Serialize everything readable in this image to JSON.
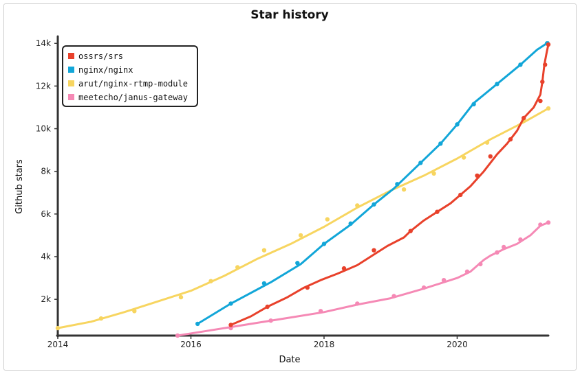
{
  "chart_data": {
    "type": "line",
    "title": "Star history",
    "xlabel": "Date",
    "ylabel": "Github stars",
    "x_unit": "year",
    "xlim": [
      2014.0,
      2021.37
    ],
    "ylim": [
      300,
      14200
    ],
    "x_ticks": [
      {
        "value": 2014,
        "label": "2014"
      },
      {
        "value": 2016,
        "label": "2016"
      },
      {
        "value": 2018,
        "label": "2018"
      },
      {
        "value": 2020,
        "label": "2020"
      }
    ],
    "y_ticks": [
      {
        "value": 2000,
        "label": "2k"
      },
      {
        "value": 4000,
        "label": "4k"
      },
      {
        "value": 6000,
        "label": "6k"
      },
      {
        "value": 8000,
        "label": "8k"
      },
      {
        "value": 10000,
        "label": "10k"
      },
      {
        "value": 12000,
        "label": "12k"
      },
      {
        "value": 14000,
        "label": "14k"
      }
    ],
    "legend_position": "top-left",
    "series": [
      {
        "name": "ossrs/srs",
        "color": "#e8412b",
        "points": [
          [
            2016.6,
            800
          ],
          [
            2016.9,
            1200
          ],
          [
            2017.15,
            1650
          ],
          [
            2017.45,
            2100
          ],
          [
            2017.7,
            2550
          ],
          [
            2017.95,
            2900
          ],
          [
            2018.2,
            3200
          ],
          [
            2018.5,
            3600
          ],
          [
            2018.75,
            4100
          ],
          [
            2018.95,
            4500
          ],
          [
            2019.2,
            4900
          ],
          [
            2019.3,
            5200
          ],
          [
            2019.5,
            5700
          ],
          [
            2019.7,
            6100
          ],
          [
            2019.9,
            6500
          ],
          [
            2020.05,
            6900
          ],
          [
            2020.2,
            7300
          ],
          [
            2020.4,
            8000
          ],
          [
            2020.6,
            8800
          ],
          [
            2020.75,
            9300
          ],
          [
            2020.9,
            9900
          ],
          [
            2021.0,
            10500
          ],
          [
            2021.15,
            11000
          ],
          [
            2021.25,
            11600
          ],
          [
            2021.28,
            12200
          ],
          [
            2021.31,
            13000
          ],
          [
            2021.34,
            13500
          ],
          [
            2021.37,
            13950
          ]
        ],
        "markers": [
          [
            2016.6,
            800
          ],
          [
            2017.15,
            1650
          ],
          [
            2017.75,
            2550
          ],
          [
            2018.3,
            3450
          ],
          [
            2018.75,
            4300
          ],
          [
            2019.3,
            5200
          ],
          [
            2019.7,
            6100
          ],
          [
            2020.05,
            6900
          ],
          [
            2020.3,
            7800
          ],
          [
            2020.5,
            8700
          ],
          [
            2020.8,
            9500
          ],
          [
            2021.0,
            10500
          ],
          [
            2021.25,
            11300
          ],
          [
            2021.28,
            12200
          ],
          [
            2021.32,
            13000
          ],
          [
            2021.37,
            13950
          ]
        ]
      },
      {
        "name": "nginx/nginx",
        "color": "#12a6d8",
        "points": [
          [
            2016.1,
            850
          ],
          [
            2016.6,
            1800
          ],
          [
            2017.2,
            2800
          ],
          [
            2017.65,
            3650
          ],
          [
            2018.0,
            4600
          ],
          [
            2018.4,
            5500
          ],
          [
            2018.75,
            6450
          ],
          [
            2019.05,
            7200
          ],
          [
            2019.45,
            8400
          ],
          [
            2019.75,
            9300
          ],
          [
            2020.0,
            10200
          ],
          [
            2020.25,
            11200
          ],
          [
            2020.6,
            12100
          ],
          [
            2020.95,
            13000
          ],
          [
            2021.2,
            13700
          ],
          [
            2021.37,
            14050
          ]
        ],
        "markers": [
          [
            2016.1,
            850
          ],
          [
            2016.6,
            1800
          ],
          [
            2017.1,
            2750
          ],
          [
            2017.6,
            3700
          ],
          [
            2018.0,
            4600
          ],
          [
            2018.4,
            5550
          ],
          [
            2018.75,
            6450
          ],
          [
            2019.1,
            7400
          ],
          [
            2019.45,
            8400
          ],
          [
            2019.75,
            9300
          ],
          [
            2020.0,
            10200
          ],
          [
            2020.25,
            11150
          ],
          [
            2020.6,
            12100
          ],
          [
            2020.95,
            13000
          ],
          [
            2021.35,
            14000
          ]
        ]
      },
      {
        "name": "arut/nginx-rtmp-module",
        "color": "#f7d560",
        "points": [
          [
            2014.0,
            650
          ],
          [
            2014.5,
            950
          ],
          [
            2015.0,
            1400
          ],
          [
            2015.5,
            1900
          ],
          [
            2016.0,
            2400
          ],
          [
            2016.5,
            3100
          ],
          [
            2017.0,
            3900
          ],
          [
            2017.5,
            4600
          ],
          [
            2018.0,
            5400
          ],
          [
            2018.5,
            6300
          ],
          [
            2019.0,
            7100
          ],
          [
            2019.5,
            7800
          ],
          [
            2020.0,
            8600
          ],
          [
            2020.5,
            9500
          ],
          [
            2021.0,
            10300
          ],
          [
            2021.37,
            10950
          ]
        ],
        "markers": [
          [
            2014.0,
            650
          ],
          [
            2014.65,
            1100
          ],
          [
            2015.15,
            1450
          ],
          [
            2015.85,
            2100
          ],
          [
            2016.3,
            2850
          ],
          [
            2016.7,
            3500
          ],
          [
            2017.1,
            4300
          ],
          [
            2017.65,
            5000
          ],
          [
            2018.05,
            5750
          ],
          [
            2018.5,
            6400
          ],
          [
            2019.2,
            7150
          ],
          [
            2019.65,
            7900
          ],
          [
            2020.1,
            8650
          ],
          [
            2020.45,
            9350
          ],
          [
            2021.0,
            10400
          ],
          [
            2021.37,
            10950
          ]
        ]
      },
      {
        "name": "meetecho/janus-gateway",
        "color": "#f589b5",
        "points": [
          [
            2015.8,
            300
          ],
          [
            2016.2,
            500
          ],
          [
            2016.6,
            700
          ],
          [
            2017.0,
            900
          ],
          [
            2017.5,
            1150
          ],
          [
            2018.0,
            1400
          ],
          [
            2018.5,
            1750
          ],
          [
            2019.0,
            2050
          ],
          [
            2019.5,
            2500
          ],
          [
            2020.0,
            3000
          ],
          [
            2020.2,
            3300
          ],
          [
            2020.4,
            3850
          ],
          [
            2020.5,
            4050
          ],
          [
            2020.7,
            4350
          ],
          [
            2020.9,
            4600
          ],
          [
            2021.1,
            5000
          ],
          [
            2021.25,
            5450
          ],
          [
            2021.37,
            5600
          ]
        ],
        "markers": [
          [
            2015.8,
            300
          ],
          [
            2016.6,
            650
          ],
          [
            2017.2,
            1000
          ],
          [
            2017.95,
            1450
          ],
          [
            2018.5,
            1800
          ],
          [
            2019.05,
            2150
          ],
          [
            2019.5,
            2550
          ],
          [
            2019.8,
            2900
          ],
          [
            2020.15,
            3300
          ],
          [
            2020.35,
            3650
          ],
          [
            2020.6,
            4200
          ],
          [
            2020.7,
            4450
          ],
          [
            2020.95,
            4800
          ],
          [
            2021.25,
            5500
          ],
          [
            2021.37,
            5600
          ]
        ]
      }
    ]
  }
}
